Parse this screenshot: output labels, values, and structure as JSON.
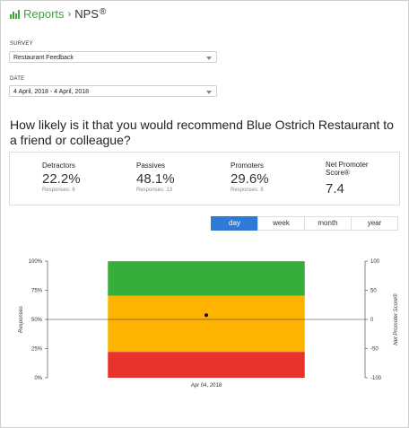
{
  "header": {
    "reports_label": "Reports",
    "separator": "›",
    "current_label": "NPS",
    "registered_mark": "®"
  },
  "filters": {
    "survey_label": "SURVEY",
    "survey_value": "Restaurant Feedback",
    "date_label": "DATE",
    "date_value": "4 April, 2018 - 4 April, 2018"
  },
  "question": "How likely is it that you would recommend Blue Ostrich Restaurant to a friend or colleague?",
  "stats": [
    {
      "label": "Detractors",
      "value": "22.2%",
      "responses": "Responses: 6"
    },
    {
      "label": "Passives",
      "value": "48.1%",
      "responses": "Responses: 13"
    },
    {
      "label": "Promoters",
      "value": "29.6%",
      "responses": "Responses: 8"
    },
    {
      "label": "Net Promoter Score®",
      "value": "7.4"
    }
  ],
  "periods": [
    {
      "label": "day",
      "active": true
    },
    {
      "label": "week",
      "active": false
    },
    {
      "label": "month",
      "active": false
    },
    {
      "label": "year",
      "active": false
    }
  ],
  "colors": {
    "brand": "#3da73d",
    "active_tab": "#2f7ad6",
    "detractors": "#e8322b",
    "passives": "#fdb300",
    "promoters": "#37ad3a"
  },
  "chart_data": {
    "type": "bar",
    "stacked": true,
    "categories": [
      "Apr 04, 2018"
    ],
    "series": [
      {
        "name": "Detractors",
        "values": [
          22.2
        ]
      },
      {
        "name": "Passives",
        "values": [
          48.1
        ]
      },
      {
        "name": "Promoters",
        "values": [
          29.6
        ]
      }
    ],
    "nps_points": [
      7.4
    ],
    "ylabel": "Responses",
    "y2label": "Net Promoter Score®",
    "ylim": [
      0,
      100
    ],
    "y2lim": [
      -100,
      100
    ],
    "y_ticks": [
      "0%",
      "25%",
      "50%",
      "75%",
      "100%"
    ],
    "y2_ticks": [
      "-100",
      "-50",
      "0",
      "50",
      "100"
    ],
    "grid": false
  }
}
